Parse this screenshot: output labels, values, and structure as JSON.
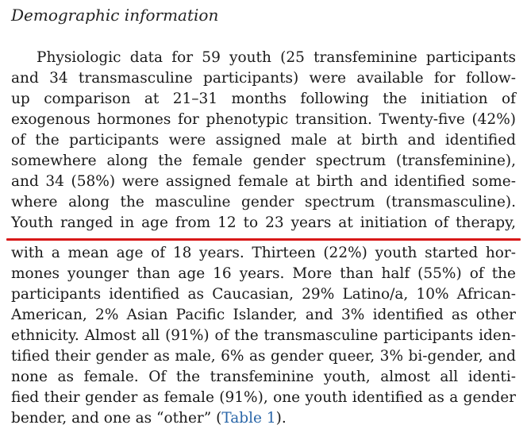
{
  "section": {
    "heading": "Demographic information"
  },
  "paragraph": {
    "lines": [
      "Physiologic data for 59 youth (25 transfeminine participants",
      "and 34 transmasculine participants) were available for follow-",
      "up comparison at 21–31 months following the initiation of",
      "exogenous hormones for phenotypic transition. Twenty-five (42%)",
      "of the participants were assigned male at birth and identified",
      "somewhere along the female gender spectrum (transfeminine),",
      "and 34 (58%) were assigned female at birth and identified some-",
      "where along the masculine gender spectrum (transmasculine).",
      "Youth ranged in age from 12 to 23 years at initiation of therapy,",
      "with a mean age of 18 years. Thirteen (22%) youth started hor-",
      "mones younger than age 16 years. More than half (55%) of the",
      "participants identified as Caucasian, 29% Latino/a, 10% African-",
      "American, 2% Asian Pacific Islander, and 3% identified as other",
      "ethnicity. Almost all (91%) of the transmasculine participants iden-",
      "tified their gender as male, 6% as gender queer, 3% bi-gender, and",
      "none as female. Of the transfeminine youth, almost all identi-",
      "fied their gender as female (91%), one youth identified as a gender"
    ],
    "last_line": {
      "before": "bender, and one as “other” (",
      "link": "Table 1",
      "after": ")."
    }
  },
  "annotation": {
    "color": "#d81818"
  }
}
